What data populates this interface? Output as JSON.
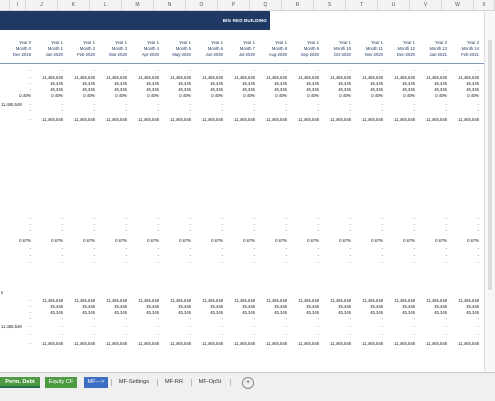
{
  "column_headers": [
    "I",
    "J",
    "K",
    "L",
    "M",
    "N",
    "O",
    "P",
    "Q",
    "R",
    "S",
    "T",
    "U",
    "V",
    "W",
    "X"
  ],
  "banner_title": "BIG RED BUILDING",
  "periods": [
    {
      "year": "Year 0",
      "month": "Month 0",
      "date": "Dec-2019"
    },
    {
      "year": "Year 1",
      "month": "Month 1",
      "date": "Jan-2020"
    },
    {
      "year": "Year 1",
      "month": "Month 2",
      "date": "Feb-2020"
    },
    {
      "year": "Year 1",
      "month": "Month 3",
      "date": "Mar-2020"
    },
    {
      "year": "Year 1",
      "month": "Month 4",
      "date": "Apr-2020"
    },
    {
      "year": "Year 1",
      "month": "Month 5",
      "date": "May-2020"
    },
    {
      "year": "Year 1",
      "month": "Month 6",
      "date": "Jun-2020"
    },
    {
      "year": "Year 1",
      "month": "Month 7",
      "date": "Jul-2020"
    },
    {
      "year": "Year 1",
      "month": "Month 8",
      "date": "Aug-2020"
    },
    {
      "year": "Year 1",
      "month": "Month 9",
      "date": "Sep-2020"
    },
    {
      "year": "Year 1",
      "month": "Month 10",
      "date": "Oct-2020"
    },
    {
      "year": "Year 1",
      "month": "Month 11",
      "date": "Nov-2020"
    },
    {
      "year": "Year 1",
      "month": "Month 12",
      "date": "Dec-2020"
    },
    {
      "year": "Year 2",
      "month": "Month 13",
      "date": "Jan-2021"
    },
    {
      "year": "Year 2",
      "month": "Month 14",
      "date": "Feb-2021"
    }
  ],
  "values": {
    "dash": "-",
    "balance": "11,455,548",
    "payment": "45,345",
    "rate": "0.40%",
    "rate2": "0.67%",
    "left_balance": "11,455,548"
  },
  "left_stub": "s",
  "sheet_tabs": [
    {
      "label": "Perm. Debt",
      "style": "perm"
    },
    {
      "label": "Equity CF",
      "style": "green"
    },
    {
      "label": "MF--->",
      "style": "blue"
    },
    {
      "label": "MF-Settings",
      "style": "plain"
    },
    {
      "label": "MF-RR",
      "style": "plain"
    },
    {
      "label": "MF-OpSt",
      "style": "plain"
    }
  ],
  "add_sheet_symbol": "+"
}
